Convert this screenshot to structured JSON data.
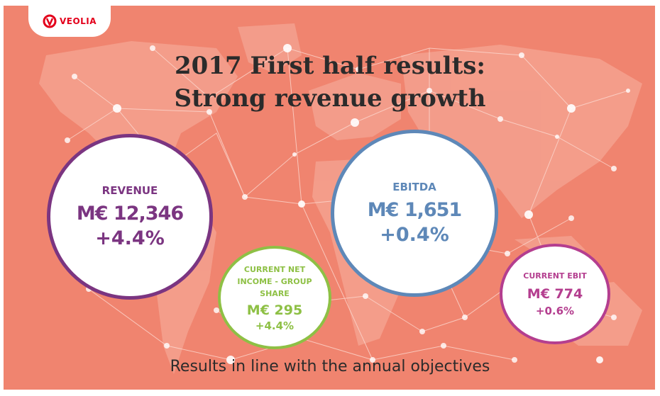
{
  "brand": {
    "logo_text": "VEOLIA",
    "color": "#e3001b"
  },
  "title": {
    "line1": "2017 First half results:",
    "line2": "Strong revenue growth"
  },
  "metrics": {
    "revenue": {
      "label": "REVENUE",
      "value": "M€ 12,346",
      "change": "+4.4%",
      "color": "#7b3581"
    },
    "ebitda": {
      "label": "EBITDA",
      "value": "M€ 1,651",
      "change": "+0.4%",
      "color": "#5e88b8"
    },
    "net_income": {
      "label_line1": "CURRENT NET",
      "label_line2": "INCOME - GROUP",
      "label_line3": "SHARE",
      "value": "M€ 295",
      "change": "+4.4%",
      "color": "#8ec045"
    },
    "ebit": {
      "label": "CURRENT EBIT",
      "value": "M€ 774",
      "change": "+0.6%",
      "color": "#b43e8f"
    }
  },
  "subtitle": "Results in line with the annual objectives",
  "background_color": "#f0846f"
}
